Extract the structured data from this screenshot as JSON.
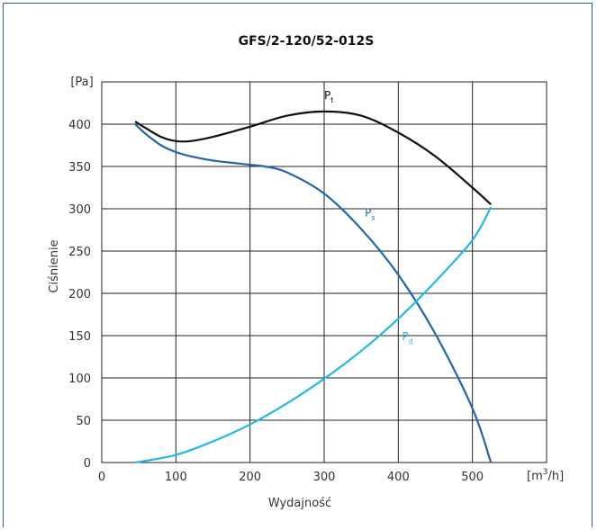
{
  "chart_data": {
    "type": "line",
    "title": "GFS/2-120/52-012S",
    "xlabel": "Wydajność",
    "ylabel": "Ciśnienie",
    "y_unit": "[Pa]",
    "x_unit": {
      "pre": "[m",
      "sup": "3",
      "post": "/h]"
    },
    "xlim": [
      0,
      600
    ],
    "ylim": [
      0,
      450
    ],
    "x_ticks": [
      0,
      100,
      200,
      300,
      400,
      500
    ],
    "y_ticks": [
      0,
      50,
      100,
      150,
      200,
      250,
      300,
      350,
      400
    ],
    "grid": true,
    "series": [
      {
        "name": "P",
        "sub": "t",
        "color": "#111111",
        "x": [
          45,
          60,
          80,
          100,
          120,
          150,
          200,
          250,
          300,
          350,
          400,
          450,
          500,
          525
        ],
        "y": [
          403,
          395,
          385,
          380,
          380,
          385,
          397,
          410,
          415,
          410,
          390,
          362,
          325,
          305
        ]
      },
      {
        "name": "P",
        "sub": "s",
        "color": "#1f66ad",
        "x": [
          45,
          60,
          80,
          100,
          120,
          150,
          200,
          220,
          250,
          300,
          350,
          400,
          450,
          500,
          525
        ],
        "y": [
          400,
          388,
          375,
          367,
          362,
          357,
          352,
          350,
          343,
          318,
          276,
          222,
          152,
          64,
          0
        ]
      },
      {
        "name": "P",
        "sub": "d",
        "color": "#26b7e6",
        "x": [
          45,
          100,
          150,
          200,
          250,
          300,
          350,
          400,
          450,
          500,
          525
        ],
        "y": [
          0,
          9,
          25,
          45,
          70,
          99,
          132,
          170,
          214,
          263,
          302
        ]
      }
    ]
  }
}
